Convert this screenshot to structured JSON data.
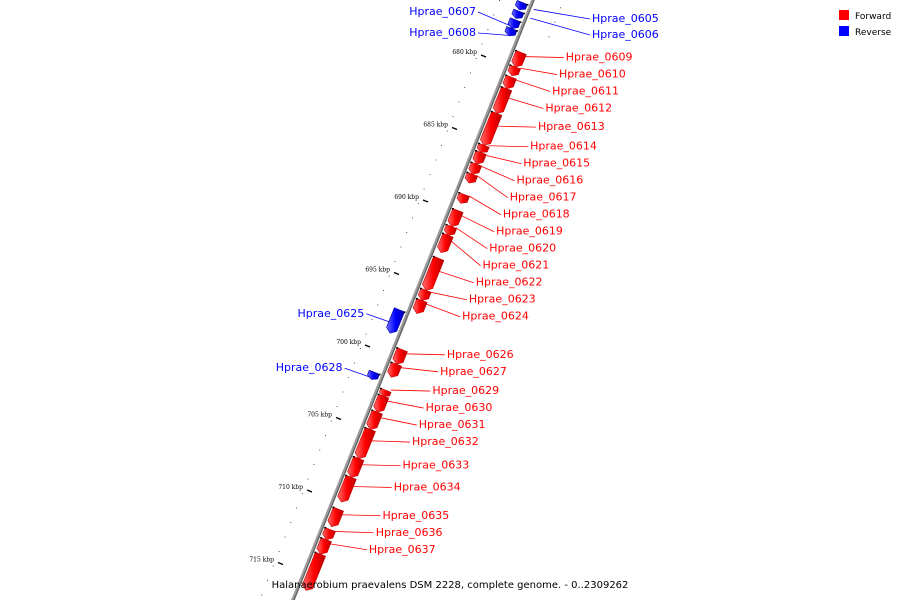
{
  "legend": [
    {
      "label": "Forward",
      "color": "#ff0000"
    },
    {
      "label": "Reverse",
      "color": "#0000ff"
    }
  ],
  "caption": "Halanaerobium praevalens DSM 2228, complete genome. - 0..2309262",
  "colors": {
    "forward": "#ff0000",
    "reverse": "#0000ff",
    "backbone": "#888888"
  },
  "ticks": [
    {
      "kbp": 680,
      "label": "680 kbp"
    },
    {
      "kbp": 685,
      "label": "685 kbp"
    },
    {
      "kbp": 690,
      "label": "690 kbp"
    },
    {
      "kbp": 695,
      "label": "695 kbp"
    },
    {
      "kbp": 700,
      "label": "700 kbp"
    },
    {
      "kbp": 705,
      "label": "705 kbp"
    },
    {
      "kbp": 710,
      "label": "710 kbp"
    },
    {
      "kbp": 715,
      "label": "715 kbp"
    }
  ],
  "genes": [
    {
      "name": "Hprae_0605",
      "strand": "reverse",
      "start_kbp": 676.4,
      "end_kbp": 676.9
    },
    {
      "name": "Hprae_0606",
      "strand": "reverse",
      "start_kbp": 677.0,
      "end_kbp": 677.5
    },
    {
      "name": "Hprae_0607",
      "strand": "reverse",
      "start_kbp": 677.6,
      "end_kbp": 678.2
    },
    {
      "name": "Hprae_0608",
      "strand": "reverse",
      "start_kbp": 678.2,
      "end_kbp": 678.7
    },
    {
      "name": "Hprae_0609",
      "strand": "forward",
      "start_kbp": 679.4,
      "end_kbp": 680.4
    },
    {
      "name": "Hprae_0610",
      "strand": "forward",
      "start_kbp": 680.4,
      "end_kbp": 681.0
    },
    {
      "name": "Hprae_0611",
      "strand": "forward",
      "start_kbp": 681.1,
      "end_kbp": 681.9
    },
    {
      "name": "Hprae_0612",
      "strand": "forward",
      "start_kbp": 681.9,
      "end_kbp": 683.6
    },
    {
      "name": "Hprae_0613",
      "strand": "forward",
      "start_kbp": 683.6,
      "end_kbp": 685.8
    },
    {
      "name": "Hprae_0614",
      "strand": "forward",
      "start_kbp": 685.8,
      "end_kbp": 686.3
    },
    {
      "name": "Hprae_0615",
      "strand": "forward",
      "start_kbp": 686.3,
      "end_kbp": 687.1
    },
    {
      "name": "Hprae_0616",
      "strand": "forward",
      "start_kbp": 687.1,
      "end_kbp": 687.8
    },
    {
      "name": "Hprae_0617",
      "strand": "forward",
      "start_kbp": 687.8,
      "end_kbp": 688.4
    },
    {
      "name": "Hprae_0618",
      "strand": "forward",
      "start_kbp": 689.2,
      "end_kbp": 689.8
    },
    {
      "name": "Hprae_0619",
      "strand": "forward",
      "start_kbp": 690.3,
      "end_kbp": 691.4
    },
    {
      "name": "Hprae_0620",
      "strand": "forward",
      "start_kbp": 691.4,
      "end_kbp": 692.0
    },
    {
      "name": "Hprae_0621",
      "strand": "forward",
      "start_kbp": 692.0,
      "end_kbp": 693.2
    },
    {
      "name": "Hprae_0622",
      "strand": "forward",
      "start_kbp": 693.6,
      "end_kbp": 695.8
    },
    {
      "name": "Hprae_0623",
      "strand": "forward",
      "start_kbp": 695.8,
      "end_kbp": 696.5
    },
    {
      "name": "Hprae_0624",
      "strand": "forward",
      "start_kbp": 696.5,
      "end_kbp": 697.4
    },
    {
      "name": "Hprae_0625",
      "strand": "reverse",
      "start_kbp": 697.6,
      "end_kbp": 699.2
    },
    {
      "name": "Hprae_0626",
      "strand": "forward",
      "start_kbp": 699.9,
      "end_kbp": 700.9
    },
    {
      "name": "Hprae_0627",
      "strand": "forward",
      "start_kbp": 700.9,
      "end_kbp": 701.8
    },
    {
      "name": "Hprae_0628",
      "strand": "reverse",
      "start_kbp": 701.9,
      "end_kbp": 702.4
    },
    {
      "name": "Hprae_0629",
      "strand": "forward",
      "start_kbp": 702.7,
      "end_kbp": 703.1
    },
    {
      "name": "Hprae_0630",
      "strand": "forward",
      "start_kbp": 703.1,
      "end_kbp": 704.2
    },
    {
      "name": "Hprae_0631",
      "strand": "forward",
      "start_kbp": 704.2,
      "end_kbp": 705.4
    },
    {
      "name": "Hprae_0632",
      "strand": "forward",
      "start_kbp": 705.4,
      "end_kbp": 707.4
    },
    {
      "name": "Hprae_0633",
      "strand": "forward",
      "start_kbp": 707.4,
      "end_kbp": 708.7
    },
    {
      "name": "Hprae_0634",
      "strand": "forward",
      "start_kbp": 708.7,
      "end_kbp": 710.4
    },
    {
      "name": "Hprae_0635",
      "strand": "forward",
      "start_kbp": 710.9,
      "end_kbp": 712.1
    },
    {
      "name": "Hprae_0636",
      "strand": "forward",
      "start_kbp": 712.3,
      "end_kbp": 713.0
    },
    {
      "name": "Hprae_0637",
      "strand": "forward",
      "start_kbp": 713.0,
      "end_kbp": 714.0
    },
    {
      "name": "",
      "strand": "forward",
      "start_kbp": 714.0,
      "end_kbp": 716.5
    }
  ]
}
